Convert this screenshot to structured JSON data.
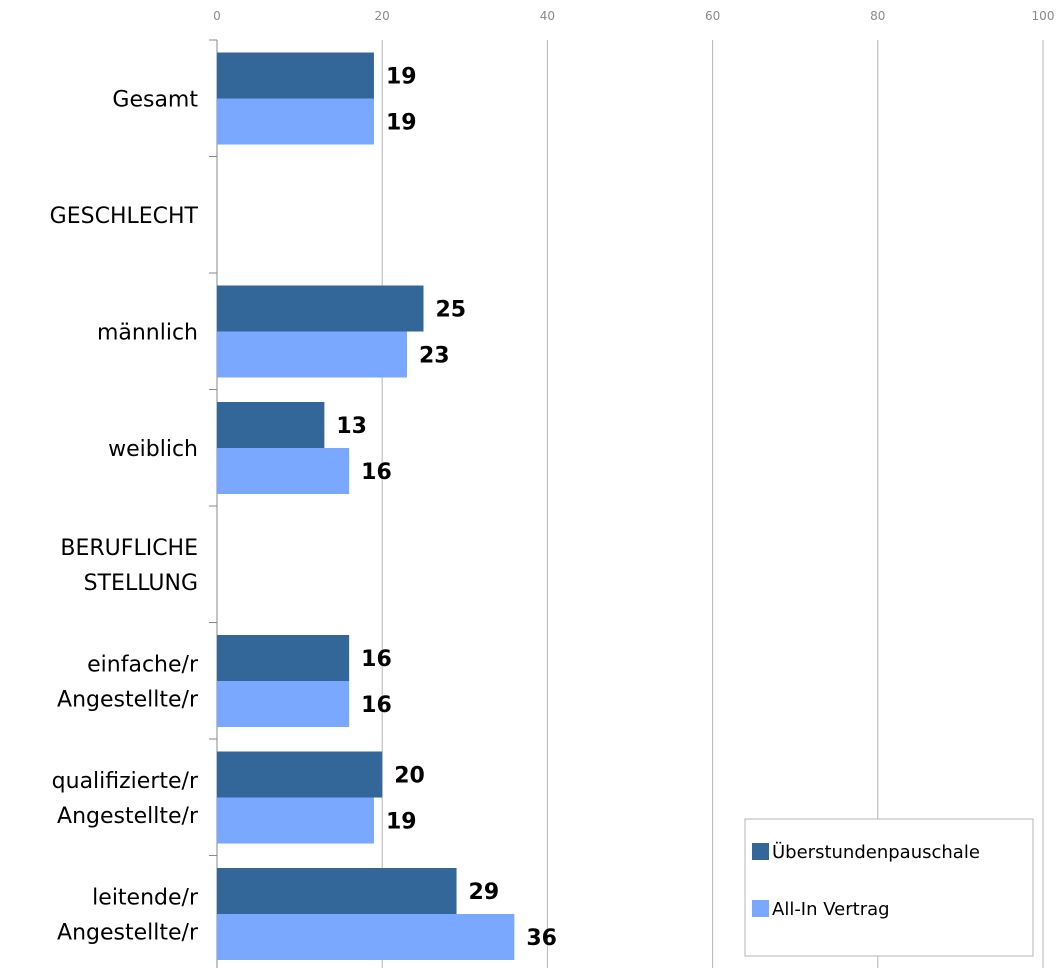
{
  "chart_data": {
    "type": "bar",
    "orientation": "horizontal",
    "title": "",
    "xlim": [
      0,
      100
    ],
    "x_ticks": [
      "0",
      "20",
      "40",
      "60",
      "80",
      "100"
    ],
    "grid": true,
    "legend_position": "bottom-right",
    "categories": [
      [
        "Gesamt"
      ],
      [
        "GESCHLECHT"
      ],
      [
        "männlich"
      ],
      [
        "weiblich"
      ],
      [
        "BERUFLICHE",
        "STELLUNG"
      ],
      [
        "einfache/r",
        "Angestellte/r"
      ],
      [
        "qualifizierte/r",
        "Angestellte/r"
      ],
      [
        "leitende/r",
        "Angestellte/r"
      ]
    ],
    "series": [
      {
        "name": "Überstundenpauschale",
        "color": "#336699",
        "values": [
          19,
          null,
          25,
          13,
          null,
          16,
          20,
          29
        ]
      },
      {
        "name": "All-In Vertrag",
        "color": "#7aa7ff",
        "values": [
          19,
          null,
          23,
          16,
          null,
          16,
          19,
          36
        ]
      }
    ]
  }
}
